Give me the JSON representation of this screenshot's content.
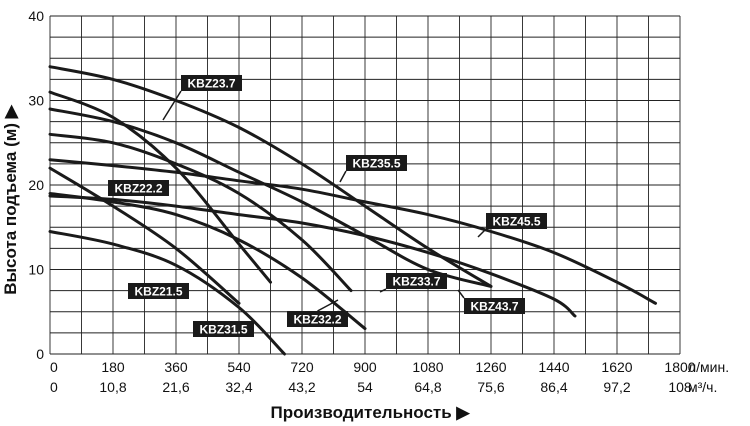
{
  "chart_data": {
    "type": "line",
    "title": "",
    "ylabel": "Высота подъема (м) ▶",
    "xlabel": "Производительность ▶",
    "ylim": [
      0,
      40
    ],
    "xlim": [
      0,
      1800
    ],
    "grid": true,
    "y_ticks": [
      "0",
      "10",
      "20",
      "30",
      "40"
    ],
    "x_ticks_lmin": [
      "0",
      "180",
      "360",
      "540",
      "720",
      "900",
      "1080",
      "1260",
      "1440",
      "1620",
      "1800"
    ],
    "x_unit_lmin": "л/мин.",
    "x_ticks_m3h": [
      "0",
      "10,8",
      "21,6",
      "32,4",
      "43,2",
      "54",
      "64,8",
      "75,6",
      "86,4",
      "97,2",
      "108"
    ],
    "x_unit_m3h": "м³/ч.",
    "series": [
      {
        "name": "KBZ23.7",
        "x": [
          0,
          180,
          360,
          540,
          720,
          900,
          1080,
          1260
        ],
        "y": [
          34,
          32.5,
          30,
          26.8,
          22.5,
          17.5,
          12.5,
          8
        ]
      },
      {
        "name": "KBZ35.5",
        "x": [
          0,
          180,
          360,
          540,
          720,
          900,
          1080,
          1260
        ],
        "y": [
          29,
          27.5,
          25,
          21.5,
          18,
          14,
          10,
          8
        ]
      },
      {
        "name": "KBZ45.5",
        "x": [
          0,
          180,
          360,
          540,
          720,
          900,
          1080,
          1260,
          1440,
          1620,
          1730
        ],
        "y": [
          23,
          22.3,
          21.5,
          20.5,
          19.5,
          18,
          16.5,
          14.5,
          12,
          8.5,
          6
        ]
      },
      {
        "name": "KBZ43.7",
        "x": [
          0,
          180,
          360,
          540,
          720,
          900,
          1080,
          1260,
          1440,
          1500
        ],
        "y": [
          18.7,
          18.3,
          17.5,
          16.5,
          15.5,
          14,
          12,
          9.5,
          6.5,
          4.5
        ]
      },
      {
        "name": "KBZ33.7",
        "x": [
          0,
          180,
          360,
          540,
          720,
          860
        ],
        "y": [
          26,
          25,
          22.5,
          19,
          13.5,
          7.5
        ]
      },
      {
        "name": "KBZ32.2",
        "x": [
          0,
          180,
          360,
          540,
          720,
          900
        ],
        "y": [
          19,
          18,
          16.5,
          13.5,
          9,
          3
        ]
      },
      {
        "name": "KBZ22.2",
        "x": [
          0,
          180,
          360,
          540,
          630
        ],
        "y": [
          31,
          28,
          22,
          13,
          8.5
        ]
      },
      {
        "name": "KBZ21.5",
        "x": [
          0,
          180,
          360,
          540
        ],
        "y": [
          22,
          17.5,
          12.5,
          6
        ]
      },
      {
        "name": "KBZ31.5",
        "x": [
          0,
          180,
          360,
          540,
          670
        ],
        "y": [
          14.5,
          13,
          10.5,
          5.5,
          0
        ]
      }
    ]
  }
}
